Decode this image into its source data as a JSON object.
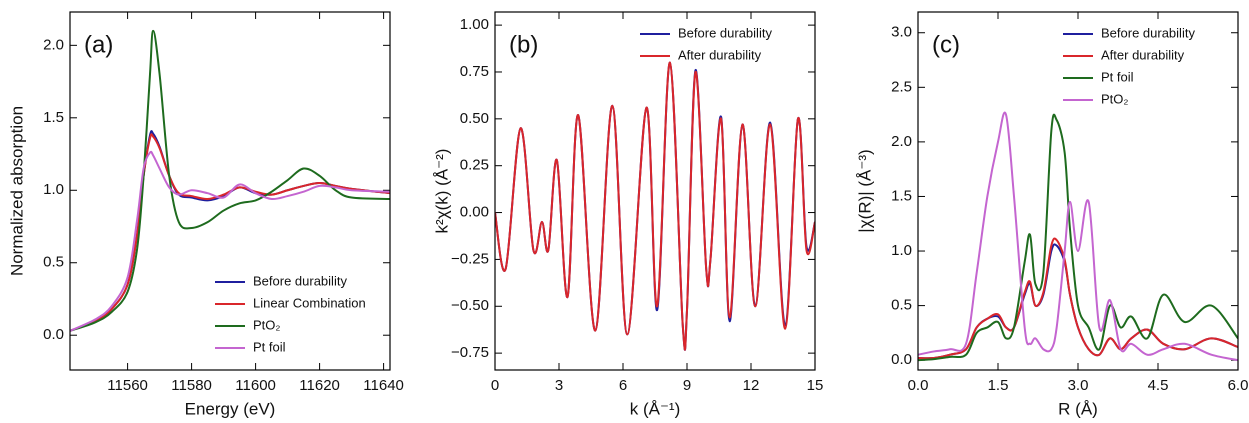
{
  "chart_data": [
    {
      "type": "line",
      "panel_label": "(a)",
      "xlabel": "Energy (eV)",
      "ylabel": "Normalized absorption",
      "x": [
        11542,
        11550,
        11555,
        11560,
        11563,
        11565,
        11567,
        11568,
        11570,
        11573,
        11576,
        11580,
        11585,
        11590,
        11595,
        11600,
        11605,
        11610,
        11615,
        11620,
        11625,
        11630,
        11642
      ],
      "series": [
        {
          "name": "Before durability",
          "color": "#1f1f9e",
          "values": [
            0.03,
            0.1,
            0.18,
            0.35,
            0.7,
            1.1,
            1.38,
            1.39,
            1.3,
            1.1,
            0.97,
            0.95,
            0.93,
            0.96,
            1.02,
            0.98,
            0.97,
            1.0,
            1.03,
            1.05,
            1.03,
            1.01,
            0.98
          ]
        },
        {
          "name": "Linear Combination",
          "color": "#d9262b",
          "values": [
            0.03,
            0.1,
            0.18,
            0.35,
            0.7,
            1.1,
            1.36,
            1.37,
            1.29,
            1.1,
            0.98,
            0.96,
            0.94,
            0.97,
            1.02,
            0.99,
            0.97,
            1.0,
            1.03,
            1.05,
            1.03,
            1.01,
            0.98
          ]
        },
        {
          "name": "PtO₂",
          "color": "#1e6b1e",
          "values": [
            0.03,
            0.09,
            0.16,
            0.3,
            0.6,
            1.1,
            1.8,
            2.1,
            1.8,
            1.1,
            0.78,
            0.74,
            0.78,
            0.86,
            0.91,
            0.93,
            0.99,
            1.07,
            1.15,
            1.1,
            1.0,
            0.95,
            0.94
          ]
        },
        {
          "name": "Pt foil",
          "color": "#c465d0",
          "values": [
            0.03,
            0.11,
            0.2,
            0.4,
            0.8,
            1.15,
            1.26,
            1.24,
            1.15,
            1.02,
            0.97,
            1.0,
            0.98,
            0.95,
            1.04,
            0.98,
            0.94,
            0.96,
            0.99,
            1.03,
            1.02,
            1.0,
            0.99
          ]
        }
      ],
      "xlim": [
        11542,
        11642
      ],
      "xticks": [
        11560,
        11580,
        11600,
        11620,
        11640
      ],
      "ylim": [
        -0.24,
        2.23
      ],
      "yticks": [
        {
          "value": 0,
          "label": "0.0"
        },
        0.5,
        {
          "value": 1,
          "label": "1.0"
        },
        1.5,
        {
          "value": 2,
          "label": "2.0"
        }
      ],
      "legend": "lower right"
    },
    {
      "type": "line",
      "panel_label": "(b)",
      "xlabel": "k (Å⁻¹)",
      "ylabel": "k²χ(k) (Å⁻²)",
      "x": [
        0,
        0.5,
        1.2,
        1.8,
        2.2,
        2.5,
        2.9,
        3.4,
        3.9,
        4.7,
        5.5,
        6.2,
        7.1,
        7.6,
        8.2,
        8.8,
        9.0,
        9.4,
        9.9,
        10.1,
        10.6,
        11.0,
        11.6,
        12.2,
        12.9,
        13.6,
        14.2,
        14.6,
        15
      ],
      "series": [
        {
          "name": "Before durability",
          "color": "#1f1f9e",
          "values": [
            0,
            -0.3,
            0.45,
            -0.2,
            -0.05,
            -0.2,
            0.28,
            -0.45,
            0.52,
            -0.63,
            0.57,
            -0.65,
            0.56,
            -0.52,
            0.8,
            -0.6,
            -0.52,
            0.76,
            -0.3,
            -0.25,
            0.51,
            -0.58,
            0.47,
            -0.5,
            0.48,
            -0.6,
            0.5,
            -0.18,
            -0.05
          ]
        },
        {
          "name": "After durability",
          "color": "#d9262b",
          "values": [
            0,
            -0.3,
            0.45,
            -0.2,
            -0.05,
            -0.2,
            0.28,
            -0.45,
            0.52,
            -0.63,
            0.57,
            -0.65,
            0.56,
            -0.5,
            0.8,
            -0.6,
            -0.52,
            0.75,
            -0.3,
            -0.25,
            0.5,
            -0.56,
            0.47,
            -0.5,
            0.47,
            -0.62,
            0.5,
            -0.2,
            -0.05
          ]
        }
      ],
      "xlim": [
        0,
        15
      ],
      "xticks": [
        0,
        3,
        6,
        9,
        12,
        15
      ],
      "ylim": [
        -0.84,
        1.07
      ],
      "yticks": [
        {
          "value": -0.75,
          "label": "−0.75"
        },
        {
          "value": -0.5,
          "label": "−0.50"
        },
        {
          "value": -0.25,
          "label": "−0.25"
        },
        {
          "value": 0,
          "label": "0.00"
        },
        0.25,
        {
          "value": 0.5,
          "label": "0.50"
        },
        0.75,
        {
          "value": 1,
          "label": "1.00"
        }
      ],
      "legend": "upper right"
    },
    {
      "type": "line",
      "panel_label": "(c)",
      "xlabel": "R (Å)",
      "ylabel": "|χ(R)| (Å⁻³)",
      "x": [
        0,
        0.3,
        0.6,
        0.9,
        1.1,
        1.3,
        1.5,
        1.65,
        1.8,
        2.0,
        2.1,
        2.2,
        2.35,
        2.5,
        2.6,
        2.75,
        2.85,
        3.0,
        3.2,
        3.4,
        3.6,
        3.8,
        4.0,
        4.3,
        4.6,
        5.0,
        5.5,
        6.0
      ],
      "series": [
        {
          "name": "Before durability",
          "color": "#1f1f9e",
          "values": [
            0.02,
            0.02,
            0.05,
            0.1,
            0.3,
            0.38,
            0.4,
            0.3,
            0.3,
            0.6,
            0.7,
            0.5,
            0.6,
            1.0,
            1.05,
            0.9,
            0.6,
            0.3,
            0.1,
            0.05,
            0.2,
            0.1,
            0.2,
            0.28,
            0.15,
            0.1,
            0.2,
            0.12
          ]
        },
        {
          "name": "After durability",
          "color": "#d9262b",
          "values": [
            0.02,
            0.02,
            0.05,
            0.1,
            0.3,
            0.38,
            0.42,
            0.3,
            0.3,
            0.62,
            0.72,
            0.5,
            0.62,
            1.05,
            1.1,
            0.92,
            0.6,
            0.3,
            0.1,
            0.05,
            0.2,
            0.1,
            0.2,
            0.28,
            0.15,
            0.1,
            0.2,
            0.12
          ]
        },
        {
          "name": "Pt foil",
          "color": "#1e6b1e",
          "values": [
            0,
            0.01,
            0.03,
            0.05,
            0.25,
            0.3,
            0.35,
            0.2,
            0.3,
            0.9,
            1.15,
            0.7,
            0.8,
            2.1,
            2.2,
            1.9,
            1.2,
            0.5,
            0.3,
            0.1,
            0.5,
            0.3,
            0.4,
            0.2,
            0.6,
            0.35,
            0.5,
            0.2
          ]
        },
        {
          "name": "PtO₂",
          "color": "#c465d0",
          "values": [
            0.05,
            0.08,
            0.1,
            0.15,
            0.8,
            1.5,
            2.0,
            2.25,
            1.5,
            0.3,
            0.15,
            0.2,
            0.1,
            0.1,
            0.3,
            1.0,
            1.45,
            1.0,
            1.45,
            0.3,
            0.55,
            0.1,
            0.15,
            0.05,
            0.1,
            0.15,
            0.05,
            0
          ]
        }
      ],
      "xlim": [
        0,
        6
      ],
      "xticks": [
        {
          "value": 0,
          "label": "0.0"
        },
        1.5,
        {
          "value": 3,
          "label": "3.0"
        },
        4.5,
        {
          "value": 6,
          "label": "6.0"
        }
      ],
      "ylim": [
        -0.09,
        3.19
      ],
      "yticks": [
        {
          "value": 0,
          "label": "0.0"
        },
        0.5,
        {
          "value": 1,
          "label": "1.0"
        },
        1.5,
        {
          "value": 2,
          "label": "2.0"
        },
        2.5,
        {
          "value": 3,
          "label": "3.0"
        }
      ],
      "legend": "upper right"
    }
  ]
}
